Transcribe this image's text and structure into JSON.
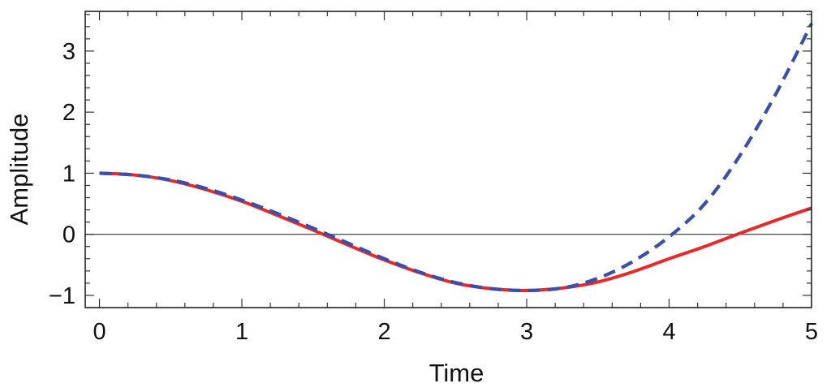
{
  "chart_data": {
    "type": "line",
    "title": "",
    "xlabel": "Time",
    "ylabel": "Amplitude",
    "xlim": [
      -0.1,
      5.0
    ],
    "ylim": [
      -1.2,
      3.65
    ],
    "xticks": [
      0,
      1,
      2,
      3,
      4,
      5
    ],
    "xtick_labels": [
      "0",
      "1",
      "2",
      "3",
      "4",
      "5"
    ],
    "yticks": [
      -1,
      0,
      1,
      2,
      3
    ],
    "ytick_labels": [
      "−1",
      "0",
      "1",
      "2",
      "3"
    ],
    "grid": false,
    "legend": "none",
    "reference_line": {
      "y": 0,
      "color": "#555555"
    },
    "series": [
      {
        "style": "solid",
        "color": "#e8282b",
        "x": [
          0,
          0.25,
          0.5,
          0.75,
          1.0,
          1.25,
          1.5,
          1.75,
          2.0,
          2.25,
          2.5,
          2.75,
          3.0,
          3.25,
          3.5,
          3.75,
          4.0,
          4.25,
          4.5,
          4.75,
          5.0
        ],
        "y": [
          1.0,
          0.97,
          0.88,
          0.73,
          0.54,
          0.31,
          0.07,
          -0.18,
          -0.42,
          -0.63,
          -0.8,
          -0.89,
          -0.92,
          -0.88,
          -0.78,
          -0.61,
          -0.4,
          -0.2,
          0.02,
          0.23,
          0.43
        ]
      },
      {
        "style": "dashed",
        "color": "#3b4fa8",
        "x": [
          0,
          0.25,
          0.5,
          0.75,
          1.0,
          1.25,
          1.5,
          1.75,
          2.0,
          2.25,
          2.5,
          2.75,
          3.0,
          3.25,
          3.5,
          3.75,
          4.0,
          4.25,
          4.5,
          4.75,
          5.0
        ],
        "y": [
          1.0,
          0.97,
          0.89,
          0.75,
          0.56,
          0.34,
          0.1,
          -0.15,
          -0.4,
          -0.62,
          -0.79,
          -0.89,
          -0.92,
          -0.88,
          -0.72,
          -0.44,
          -0.04,
          0.5,
          1.3,
          2.3,
          3.45
        ]
      }
    ]
  }
}
